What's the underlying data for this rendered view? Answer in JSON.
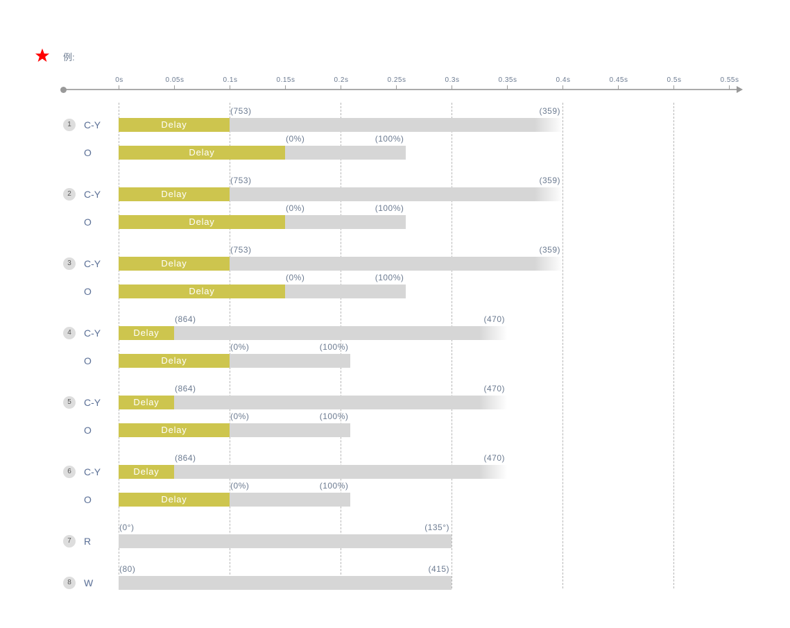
{
  "legend": {
    "label": "例:",
    "star_color": "#ff0000"
  },
  "axis": {
    "ticks": [
      "0s",
      "0.05s",
      "0.1s",
      "0.15s",
      "0.2s",
      "0.25s",
      "0.3s",
      "0.35s",
      "0.4s",
      "0.45s",
      "0.5s",
      "0.55s"
    ],
    "gridlines_s": [
      0,
      0.1,
      0.2,
      0.3,
      0.4,
      0.5
    ]
  },
  "colors": {
    "delay": "#cdc54e",
    "bar": "#d6d6d6",
    "text": "#6b7a90"
  },
  "rows": [
    {
      "num": "1",
      "tracks": [
        {
          "label": "C-Y",
          "delay_s": 0.1,
          "end_s": 0.4,
          "fade": true,
          "delay_text": "Delay",
          "start_value": "(753)",
          "end_value": "(359)"
        },
        {
          "label": "O",
          "delay_s": 0.15,
          "end_s": 0.259,
          "fade": false,
          "delay_text": "Delay",
          "start_value": "(0%)",
          "end_value": "(100%)"
        }
      ]
    },
    {
      "num": "2",
      "tracks": [
        {
          "label": "C-Y",
          "delay_s": 0.1,
          "end_s": 0.4,
          "fade": true,
          "delay_text": "Delay",
          "start_value": "(753)",
          "end_value": "(359)"
        },
        {
          "label": "O",
          "delay_s": 0.15,
          "end_s": 0.259,
          "fade": false,
          "delay_text": "Delay",
          "start_value": "(0%)",
          "end_value": "(100%)"
        }
      ]
    },
    {
      "num": "3",
      "tracks": [
        {
          "label": "C-Y",
          "delay_s": 0.1,
          "end_s": 0.4,
          "fade": true,
          "delay_text": "Delay",
          "start_value": "(753)",
          "end_value": "(359)"
        },
        {
          "label": "O",
          "delay_s": 0.15,
          "end_s": 0.259,
          "fade": false,
          "delay_text": "Delay",
          "start_value": "(0%)",
          "end_value": "(100%)"
        }
      ]
    },
    {
      "num": "4",
      "tracks": [
        {
          "label": "C-Y",
          "delay_s": 0.05,
          "end_s": 0.35,
          "fade": true,
          "delay_text": "Delay",
          "start_value": "(864)",
          "end_value": "(470)"
        },
        {
          "label": "O",
          "delay_s": 0.1,
          "end_s": 0.209,
          "fade": false,
          "delay_text": "Delay",
          "start_value": "(0%)",
          "end_value": "(100%)"
        }
      ]
    },
    {
      "num": "5",
      "tracks": [
        {
          "label": "C-Y",
          "delay_s": 0.05,
          "end_s": 0.35,
          "fade": true,
          "delay_text": "Delay",
          "start_value": "(864)",
          "end_value": "(470)"
        },
        {
          "label": "O",
          "delay_s": 0.1,
          "end_s": 0.209,
          "fade": false,
          "delay_text": "Delay",
          "start_value": "(0%)",
          "end_value": "(100%)"
        }
      ]
    },
    {
      "num": "6",
      "tracks": [
        {
          "label": "C-Y",
          "delay_s": 0.05,
          "end_s": 0.35,
          "fade": true,
          "delay_text": "Delay",
          "start_value": "(864)",
          "end_value": "(470)"
        },
        {
          "label": "O",
          "delay_s": 0.1,
          "end_s": 0.209,
          "fade": false,
          "delay_text": "Delay",
          "start_value": "(0%)",
          "end_value": "(100%)"
        }
      ]
    },
    {
      "num": "7",
      "tracks": [
        {
          "label": "R",
          "delay_s": 0,
          "end_s": 0.3,
          "fade": false,
          "delay_text": "",
          "start_value": "(0°)",
          "end_value": "(135°)"
        }
      ]
    },
    {
      "num": "8",
      "tracks": [
        {
          "label": "W",
          "delay_s": 0,
          "end_s": 0.3,
          "fade": false,
          "delay_text": "",
          "start_value": "(80)",
          "end_value": "(415)"
        }
      ]
    }
  ]
}
